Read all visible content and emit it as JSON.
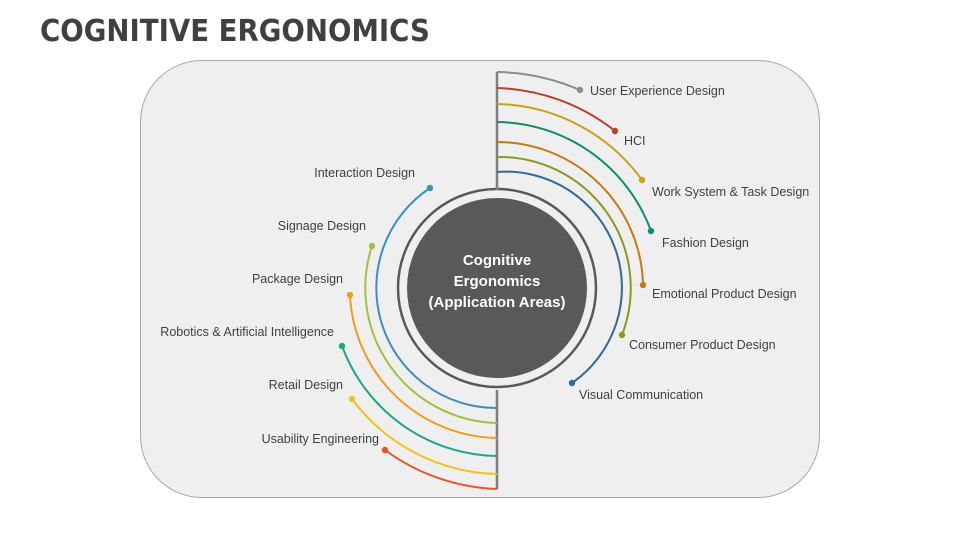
{
  "title": "COGNITIVE ERGONOMICS",
  "center": {
    "line1": "Cognitive",
    "line2": "Ergonomics",
    "line3": "(Application Areas)"
  },
  "right_items": [
    {
      "label": "User Experience Design",
      "color": "#8c8c8c"
    },
    {
      "label": "HCI",
      "color": "#b5422a"
    },
    {
      "label": "Work System & Task Design",
      "color": "#c9a21c"
    },
    {
      "label": "Fashion Design",
      "color": "#138a74"
    },
    {
      "label": "Emotional Product Design",
      "color": "#c7780f"
    },
    {
      "label": "Consumer Product Design",
      "color": "#8a9a1e"
    },
    {
      "label": "Visual Communication",
      "color": "#2f6b94"
    }
  ],
  "left_items": [
    {
      "label": "Interaction Design",
      "color": "#3b8dc4"
    },
    {
      "label": "Signage Design",
      "color": "#a3c13a"
    },
    {
      "label": "Package Design",
      "color": "#f39a1e"
    },
    {
      "label": "Robotics & Artificial Intelligence",
      "color": "#1ea58a"
    },
    {
      "label": "Retail Design",
      "color": "#f1c21b"
    },
    {
      "label": "Usability Engineering",
      "color": "#e2572b"
    }
  ]
}
